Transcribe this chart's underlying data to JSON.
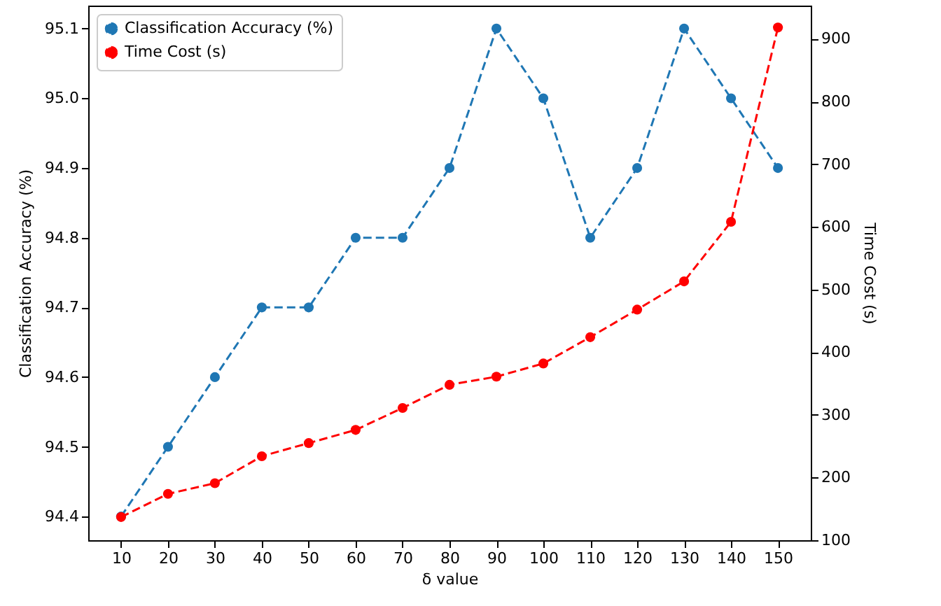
{
  "chart_data": {
    "type": "line",
    "xlabel": "δ value",
    "ylabel": "Classification Accuracy (%)",
    "y2label": "Time Cost (s)",
    "x": [
      10,
      20,
      30,
      40,
      50,
      60,
      70,
      80,
      90,
      100,
      110,
      120,
      130,
      140,
      150
    ],
    "series": [
      {
        "name": "Classification Accuracy (%)",
        "color": "#1f77b4",
        "values": [
          94.4,
          94.5,
          94.6,
          94.7,
          94.7,
          94.8,
          94.8,
          94.9,
          95.1,
          95.0,
          94.8,
          94.9,
          95.1,
          95.0,
          94.9
        ]
      },
      {
        "name": "Time Cost (s)",
        "color": "#ff0000",
        "axis": "y2",
        "values": [
          137,
          174,
          191,
          234,
          255,
          276,
          311,
          348,
          361,
          382,
          424,
          468,
          513,
          608,
          918
        ]
      }
    ],
    "xlim": [
      3,
      157
    ],
    "xticks": [
      10,
      20,
      30,
      40,
      50,
      60,
      70,
      80,
      90,
      100,
      110,
      120,
      130,
      140,
      150
    ],
    "ylim": [
      94.366,
      95.133
    ],
    "yticks": [
      94.4,
      94.5,
      94.6,
      94.7,
      94.8,
      94.9,
      {
        "value": 95,
        "label": "95.0"
      },
      95.1
    ],
    "y2lim": [
      100,
      953
    ],
    "y2ticks": [
      100,
      200,
      300,
      400,
      500,
      600,
      700,
      800,
      900
    ],
    "grid": false,
    "legend": "top left",
    "marker": "circle",
    "line_style": "dashed"
  }
}
